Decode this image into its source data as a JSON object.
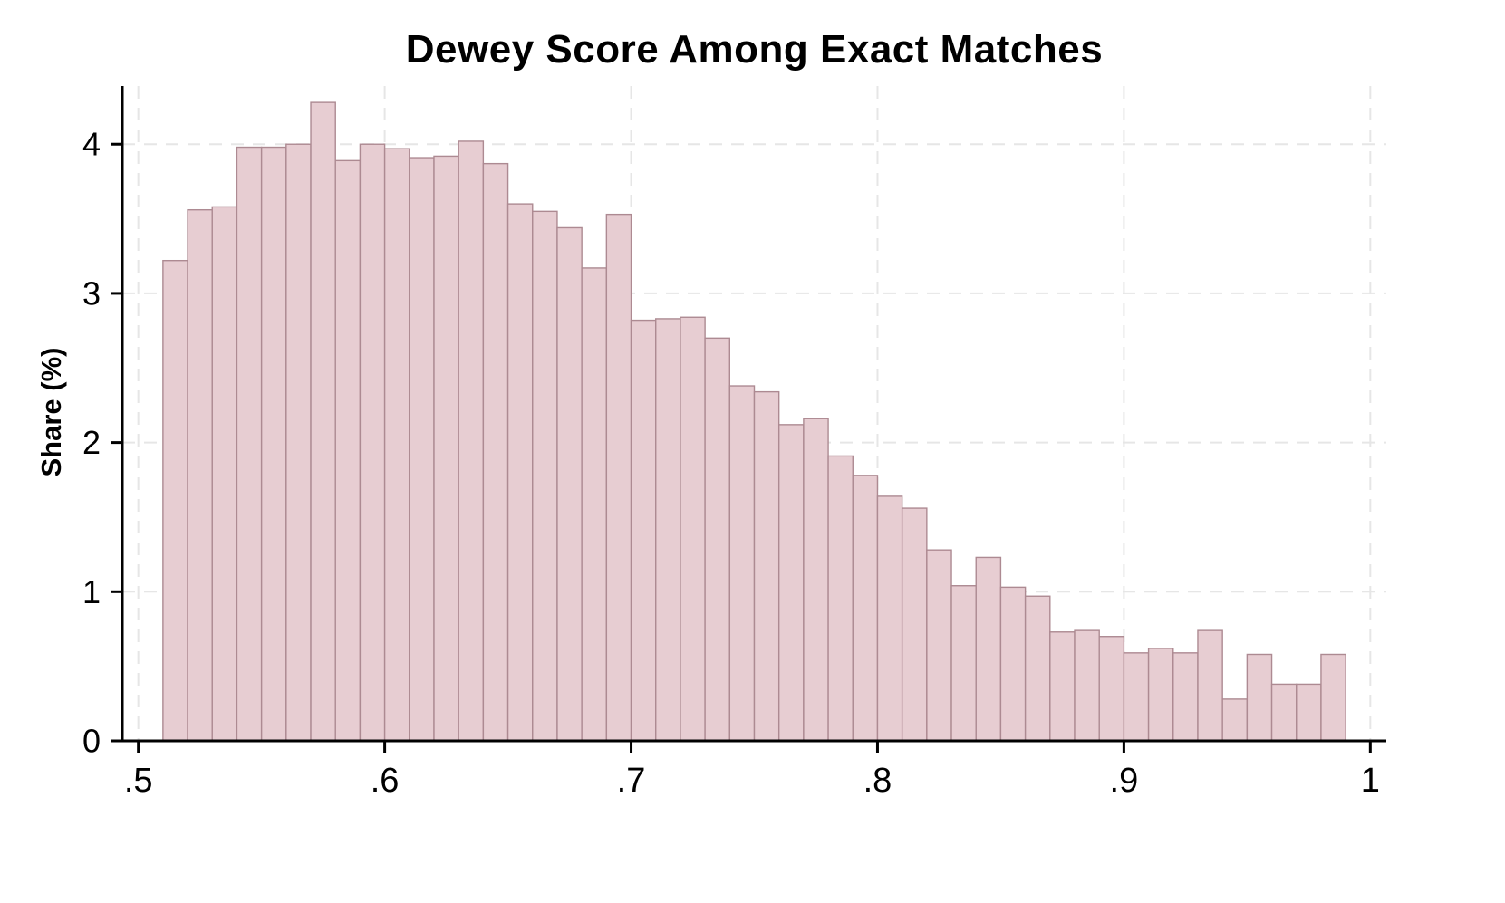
{
  "page": {
    "background": "#ffffff"
  },
  "chart_data": {
    "type": "bar",
    "subtype": "histogram",
    "title": "Dewey Score Among Exact Matches",
    "xlabel": "",
    "ylabel": "Share (%)",
    "bin_start": 0.51,
    "bin_width": 0.01,
    "values": [
      3.22,
      3.56,
      3.58,
      3.98,
      3.98,
      4.0,
      4.28,
      3.89,
      4.0,
      3.97,
      3.91,
      3.92,
      4.02,
      3.87,
      3.6,
      3.55,
      3.44,
      3.17,
      3.53,
      2.82,
      2.83,
      2.84,
      2.7,
      2.38,
      2.34,
      2.12,
      2.16,
      1.91,
      1.78,
      1.64,
      1.56,
      1.28,
      1.04,
      1.23,
      1.03,
      0.97,
      0.73,
      0.74,
      0.7,
      0.59,
      0.62,
      0.59,
      0.74,
      0.28,
      0.58,
      0.38,
      0.38,
      0.58
    ],
    "xlim": [
      0.4935,
      1.0065
    ],
    "ylim": [
      0,
      4.39
    ],
    "x_ticks": [
      0.5,
      0.6,
      0.7,
      0.8,
      0.9,
      1.0
    ],
    "x_tick_labels": [
      ".5",
      ".6",
      ".7",
      ".8",
      ".9",
      "1"
    ],
    "y_ticks": [
      0,
      1,
      2,
      3,
      4
    ],
    "y_tick_labels": [
      "0",
      "1",
      "2",
      "3",
      "4"
    ],
    "grid": true,
    "legend_position": "none",
    "bar_fill": "#e7cdd2",
    "bar_stroke": "#ad8a92",
    "grid_color": "#e6e6e6",
    "axis_color": "#000000"
  }
}
